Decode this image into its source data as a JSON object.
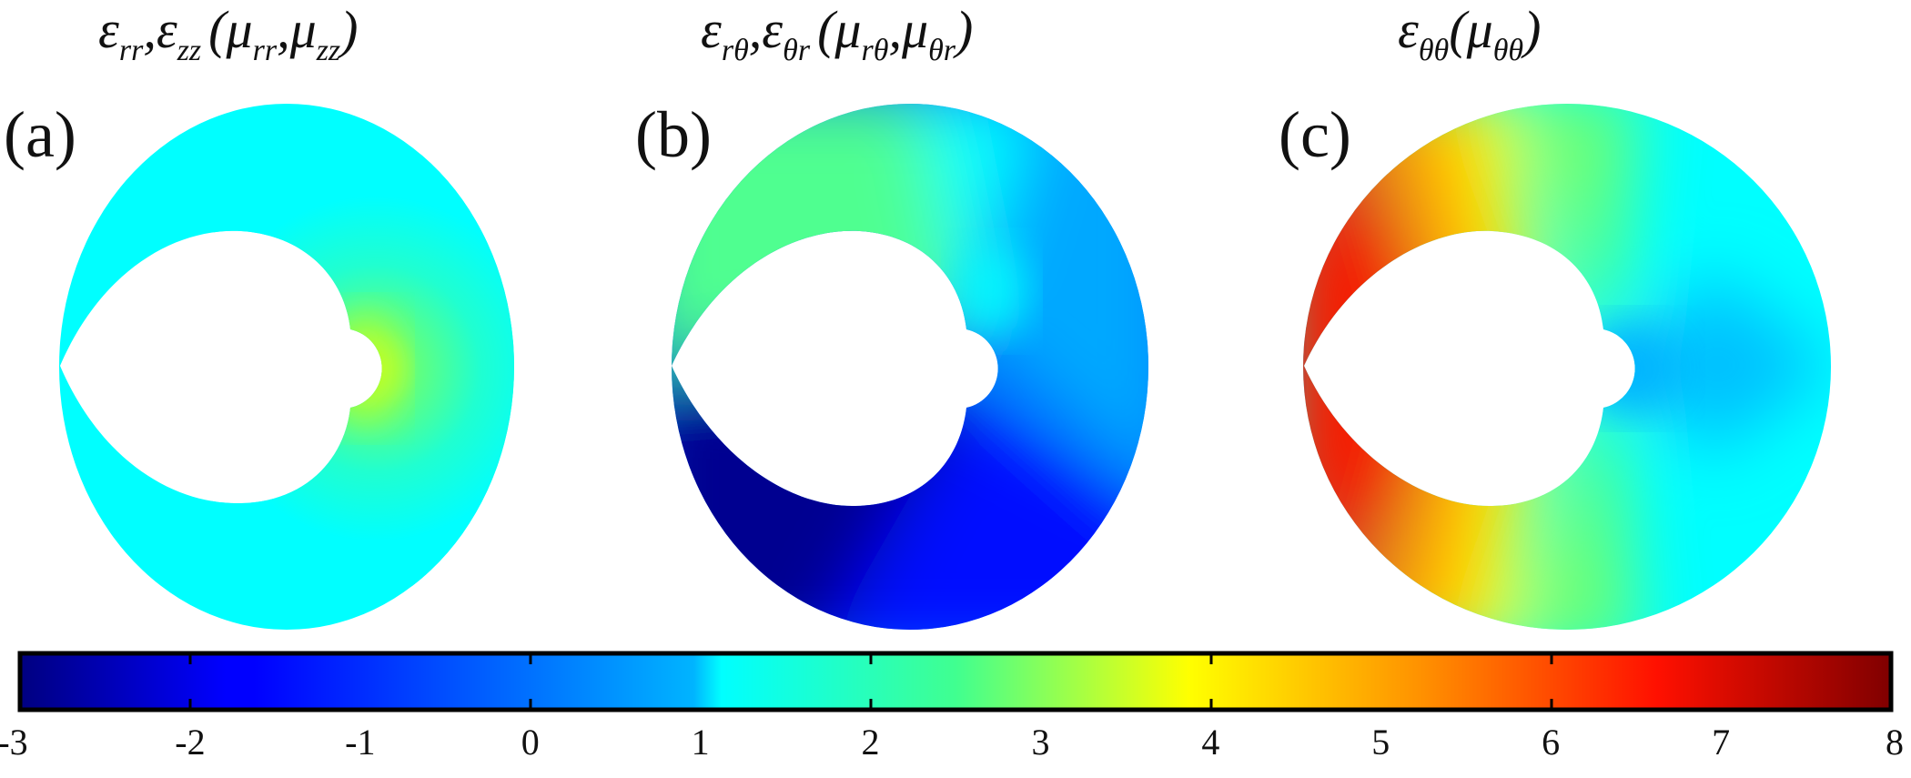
{
  "chart_data": {
    "type": "heatmap",
    "title": "",
    "panels": [
      {
        "id": "a",
        "letter": "(a)",
        "title_base": "ε",
        "title_tex": "ε_rr, ε_zz (μ_rr, μ_zz)",
        "description": "Annular region with cardioid-shaped inner hole; nearly uniform value ~1 (cyan), rising to ~2.5-3 (yellow-green) near inner right bump",
        "value_range": [
          1,
          3
        ]
      },
      {
        "id": "b",
        "letter": "(b)",
        "title_tex": "ε_rθ, ε_θr (μ_rθ, μ_θr)",
        "description": "Angularly varying: ~2-2.5 (green) upper-left, ~1 (cyan) upper-right near inner bump, ~0 (light blue) right, ~-2 (blue) bottom, ~-3 (dark blue) lower-left",
        "value_range": [
          -3,
          2.5
        ]
      },
      {
        "id": "c",
        "letter": "(c)",
        "title_tex": "ε_θθ (μ_θθ)",
        "description": "Angularly varying: ~7-8 (dark red) at left cusp, ~6 (red) left, ~4 (yellow) top-left and bottom-left, ~2 (green) top and bottom, ~0.5 (sky blue) right near inner bump",
        "value_range": [
          0.5,
          8
        ]
      }
    ],
    "colorbar": {
      "colormap": "jet",
      "orientation": "horizontal",
      "min": -3,
      "max": 8,
      "ticks": [
        -3,
        -2,
        -1,
        0,
        1,
        2,
        3,
        4,
        5,
        6,
        7,
        8
      ],
      "tick_labels": [
        "-3",
        "-2",
        "-1",
        "0",
        "1",
        "2",
        "3",
        "4",
        "5",
        "6",
        "7",
        "8"
      ]
    }
  },
  "panels": {
    "a": {
      "letter": "(a)",
      "t1": "ε",
      "s1": "rr",
      "t2": ",ε",
      "s2": "zz",
      "t3": "(μ",
      "s3": "rr",
      "t4": ",μ",
      "s4": "zz",
      "t5": ")"
    },
    "b": {
      "letter": "(b)",
      "t1": "ε",
      "s1": "rθ",
      "t2": ",ε",
      "s2": "θr",
      "t3": "(μ",
      "s3": "rθ",
      "t4": ",μ",
      "s4": "θr",
      "t5": ")"
    },
    "c": {
      "letter": "(c)",
      "t1": "ε",
      "s1": "θθ",
      "t2": "(μ",
      "s2": "θθ",
      "t3": ")"
    }
  },
  "colorbar": {
    "ticks": [
      "-3",
      "-2",
      "-1",
      "0",
      "1",
      "2",
      "3",
      "4",
      "5",
      "6",
      "7",
      "8"
    ]
  }
}
